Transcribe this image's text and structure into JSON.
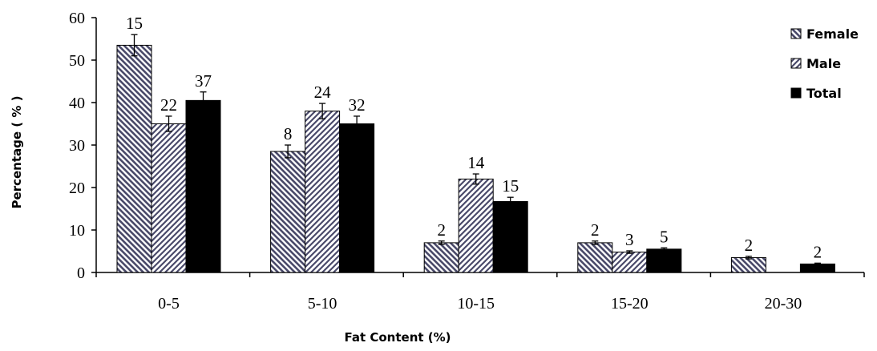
{
  "chart_data": {
    "type": "bar",
    "xlabel": "Fat Content (%)",
    "ylabel": "Percentage ( % )",
    "ylim": [
      0,
      60
    ],
    "yticks": [
      0,
      10,
      20,
      30,
      40,
      50,
      60
    ],
    "categories": [
      "0-5",
      "5-10",
      "10-15",
      "15-20",
      "20-30"
    ],
    "legend_position": "top-right",
    "grid": false,
    "series": [
      {
        "name": "Female",
        "fill": "hatch-backslash",
        "color": "#4a4a6a",
        "values": [
          53.5,
          28.5,
          7.0,
          7.0,
          3.5
        ],
        "errors": [
          2.5,
          1.5,
          0.4,
          0.4,
          0.3
        ],
        "labels": [
          "15",
          "8",
          "2",
          "2",
          "2"
        ]
      },
      {
        "name": "Male",
        "fill": "hatch-slash",
        "color": "#4a4a6a",
        "values": [
          35.0,
          38.0,
          22.0,
          4.8,
          null
        ],
        "errors": [
          1.8,
          1.8,
          1.2,
          0.3,
          null
        ],
        "labels": [
          "22",
          "24",
          "14",
          "3",
          ""
        ]
      },
      {
        "name": "Total",
        "fill": "solid",
        "color": "#000000",
        "values": [
          40.5,
          35.0,
          16.7,
          5.5,
          2.0
        ],
        "errors": [
          2.0,
          1.8,
          1.0,
          0.3,
          0.2
        ],
        "labels": [
          "37",
          "32",
          "15",
          "5",
          "2"
        ]
      }
    ]
  }
}
